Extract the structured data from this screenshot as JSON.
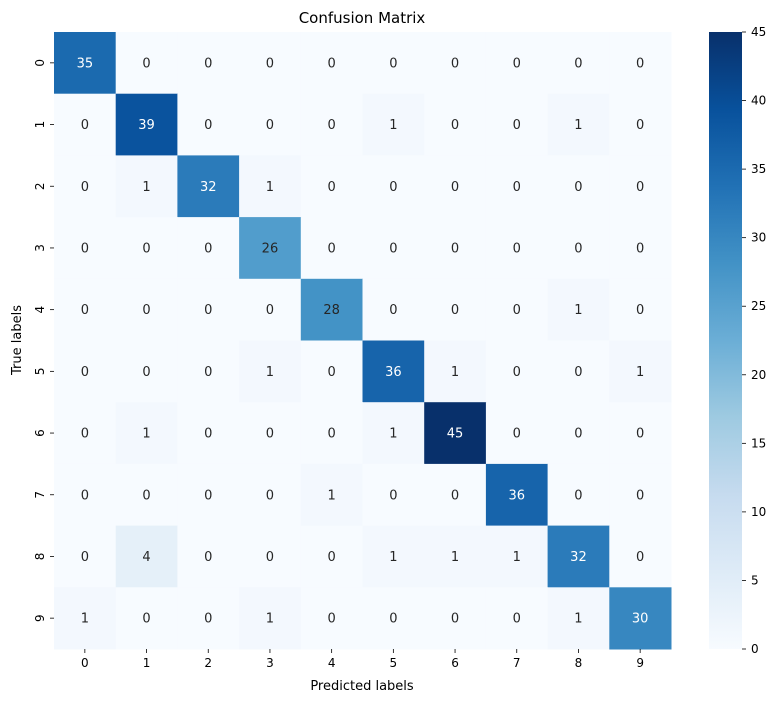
{
  "chart_data": {
    "type": "heatmap",
    "title": "Confusion Matrix",
    "xlabel": "Predicted labels",
    "ylabel": "True labels",
    "x_categories": [
      "0",
      "1",
      "2",
      "3",
      "4",
      "5",
      "6",
      "7",
      "8",
      "9"
    ],
    "y_categories": [
      "0",
      "1",
      "2",
      "3",
      "4",
      "5",
      "6",
      "7",
      "8",
      "9"
    ],
    "values": [
      [
        35,
        0,
        0,
        0,
        0,
        0,
        0,
        0,
        0,
        0
      ],
      [
        0,
        39,
        0,
        0,
        0,
        1,
        0,
        0,
        1,
        0
      ],
      [
        0,
        1,
        32,
        1,
        0,
        0,
        0,
        0,
        0,
        0
      ],
      [
        0,
        0,
        0,
        26,
        0,
        0,
        0,
        0,
        0,
        0
      ],
      [
        0,
        0,
        0,
        0,
        28,
        0,
        0,
        0,
        1,
        0
      ],
      [
        0,
        0,
        0,
        1,
        0,
        36,
        1,
        0,
        0,
        1
      ],
      [
        0,
        1,
        0,
        0,
        0,
        1,
        45,
        0,
        0,
        0
      ],
      [
        0,
        0,
        0,
        0,
        1,
        0,
        0,
        36,
        0,
        0
      ],
      [
        0,
        4,
        0,
        0,
        0,
        1,
        1,
        1,
        32,
        0
      ],
      [
        1,
        0,
        0,
        1,
        0,
        0,
        0,
        0,
        1,
        30
      ]
    ],
    "colorbar": {
      "colormap": "Blues",
      "range": [
        0,
        45
      ],
      "ticks": [
        0,
        5,
        10,
        15,
        20,
        25,
        30,
        35,
        40,
        45
      ]
    },
    "legend": "colorbar-right"
  }
}
